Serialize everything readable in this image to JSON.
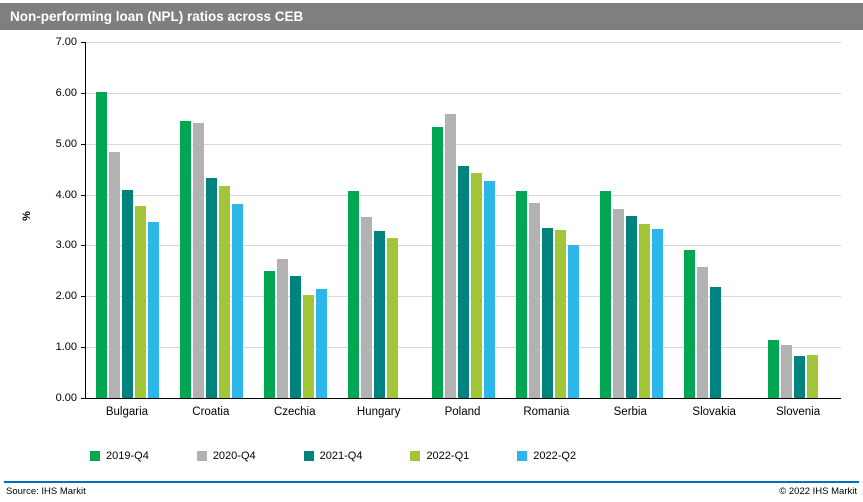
{
  "chart_data": {
    "type": "bar",
    "title": "Non-performing loan (NPL) ratios across CEB",
    "xlabel": "",
    "ylabel": "%",
    "ylim": [
      0,
      7
    ],
    "ytick_step": 1,
    "ytick_labels": [
      "0.00",
      "1.00",
      "2.00",
      "3.00",
      "4.00",
      "5.00",
      "6.00",
      "7.00"
    ],
    "grid": true,
    "legend_position": "bottom",
    "categories": [
      "Bulgaria",
      "Croatia",
      "Czechia",
      "Hungary",
      "Poland",
      "Romania",
      "Serbia",
      "Slovakia",
      "Slovenia"
    ],
    "series": [
      {
        "name": "2019-Q4",
        "color": "#00a651",
        "values": [
          6.01,
          5.45,
          2.5,
          4.07,
          5.32,
          4.08,
          4.08,
          2.91,
          1.15
        ]
      },
      {
        "name": "2020-Q4",
        "color": "#b2b2b2",
        "values": [
          4.83,
          5.41,
          2.74,
          3.55,
          5.59,
          3.83,
          3.71,
          2.58,
          1.04
        ]
      },
      {
        "name": "2021-Q4",
        "color": "#00837f",
        "values": [
          4.1,
          4.32,
          2.39,
          3.29,
          4.57,
          3.35,
          3.57,
          2.18,
          0.82
        ]
      },
      {
        "name": "2022-Q1",
        "color": "#a3c53a",
        "values": [
          3.78,
          4.16,
          2.03,
          3.15,
          4.43,
          3.3,
          3.42,
          null,
          0.85
        ]
      },
      {
        "name": "2022-Q2",
        "color": "#2cb6ea",
        "values": [
          3.46,
          3.82,
          2.15,
          null,
          4.27,
          3.0,
          3.32,
          null,
          null
        ]
      }
    ]
  },
  "footer": {
    "source": "Source: IHS Markit",
    "copyright": "© 2022  IHS Markit"
  },
  "colors": {
    "header_bg": "#7f7f7f",
    "footer_rule": "#0070c0",
    "gridline": "#d9d9d9"
  }
}
